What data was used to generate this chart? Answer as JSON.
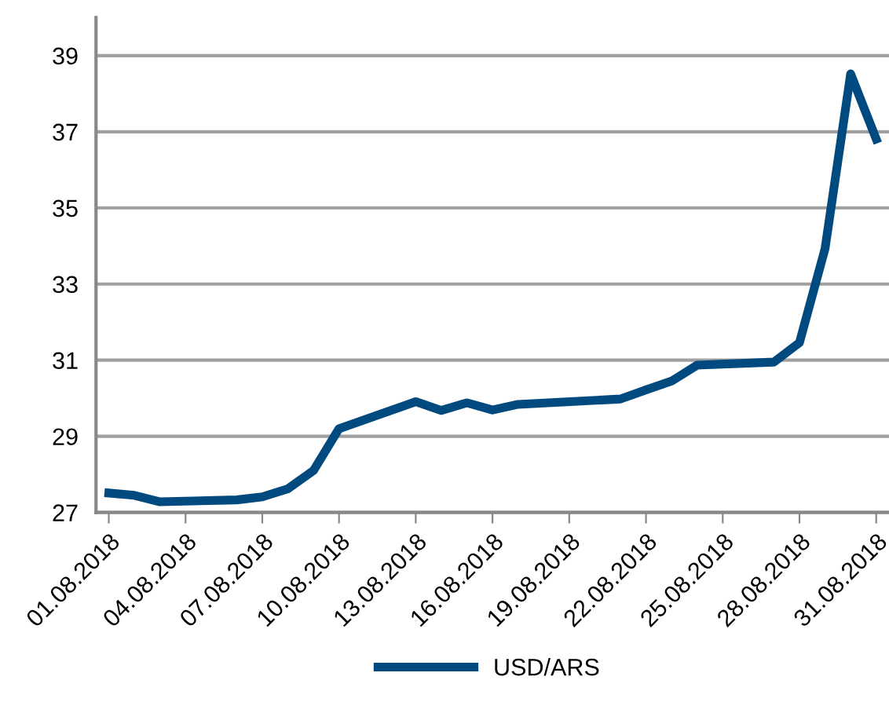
{
  "chart_data": {
    "type": "line",
    "x": [
      "2018-08-01",
      "2018-08-02",
      "2018-08-03",
      "2018-08-06",
      "2018-08-07",
      "2018-08-08",
      "2018-08-09",
      "2018-08-10",
      "2018-08-13",
      "2018-08-14",
      "2018-08-15",
      "2018-08-16",
      "2018-08-17",
      "2018-08-21",
      "2018-08-22",
      "2018-08-23",
      "2018-08-24",
      "2018-08-27",
      "2018-08-28",
      "2018-08-29",
      "2018-08-30",
      "2018-08-31"
    ],
    "series": [
      {
        "name": "USD/ARS",
        "color": "#004a7f",
        "values": [
          27.51,
          27.45,
          27.28,
          27.33,
          27.41,
          27.62,
          28.1,
          29.2,
          29.91,
          29.68,
          29.88,
          29.69,
          29.84,
          29.98,
          30.22,
          30.45,
          30.87,
          30.95,
          31.46,
          33.93,
          38.52,
          36.81
        ]
      }
    ],
    "xlim": [
      "2018-07-31T12:00",
      "2018-08-31T12:00"
    ],
    "xticks": [
      {
        "value": "2018-08-01",
        "label": "01.08.2018"
      },
      {
        "value": "2018-08-04",
        "label": "04.08.2018"
      },
      {
        "value": "2018-08-07",
        "label": "07.08.2018"
      },
      {
        "value": "2018-08-10",
        "label": "10.08.2018"
      },
      {
        "value": "2018-08-13",
        "label": "13.08.2018"
      },
      {
        "value": "2018-08-16",
        "label": "16.08.2018"
      },
      {
        "value": "2018-08-19",
        "label": "19.08.2018"
      },
      {
        "value": "2018-08-22",
        "label": "22.08.2018"
      },
      {
        "value": "2018-08-25",
        "label": "25.08.2018"
      },
      {
        "value": "2018-08-28",
        "label": "28.08.2018"
      },
      {
        "value": "2018-08-31",
        "label": "31.08.2018"
      }
    ],
    "ylim": [
      27,
      40
    ],
    "yticks": [
      27,
      29,
      31,
      33,
      35,
      37,
      39
    ],
    "grid": "y",
    "legend": "bottom",
    "marker": "none",
    "line_style": "solid"
  }
}
